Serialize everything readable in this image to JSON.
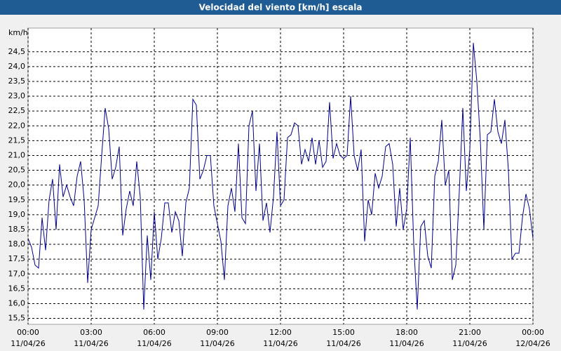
{
  "chart_data": {
    "type": "line",
    "title": "Velocidad del viento [km/h] escala",
    "y_unit": "km/h",
    "x": [
      0,
      10,
      20,
      30,
      40,
      50,
      60,
      70,
      80,
      90,
      100,
      110,
      120,
      130,
      140,
      150,
      160,
      170,
      180,
      190,
      200,
      210,
      220,
      230,
      240,
      250,
      260,
      270,
      280,
      290,
      300,
      310,
      320,
      330,
      340,
      350,
      360,
      370,
      380,
      390,
      400,
      410,
      420,
      430,
      440,
      450,
      460,
      470,
      480,
      490,
      500,
      510,
      520,
      530,
      540,
      550,
      560,
      570,
      580,
      590,
      600,
      610,
      620,
      630,
      640,
      650,
      660,
      670,
      680,
      690,
      700,
      710,
      720,
      730,
      740,
      750,
      760,
      770,
      780,
      790,
      800,
      810,
      820,
      830,
      840,
      850,
      860,
      870,
      880,
      890,
      900,
      910,
      920,
      930,
      940,
      950,
      960,
      970,
      980,
      990,
      1000,
      1010,
      1020,
      1030,
      1040,
      1050,
      1060,
      1070,
      1080,
      1090,
      1100,
      1110,
      1120,
      1130,
      1140,
      1150,
      1160,
      1170,
      1180,
      1190,
      1200,
      1210,
      1220,
      1230,
      1240,
      1250,
      1260,
      1270,
      1280,
      1290,
      1300,
      1310,
      1320,
      1330,
      1340,
      1350,
      1360,
      1370,
      1380,
      1390,
      1400,
      1410,
      1420,
      1430,
      1440
    ],
    "series": [
      {
        "color": "#00008b",
        "values": [
          18.2,
          17.9,
          17.3,
          17.2,
          18.9,
          17.8,
          19.5,
          20.2,
          18.5,
          20.7,
          19.6,
          20.0,
          19.6,
          19.3,
          20.3,
          20.8,
          19.5,
          16.7,
          18.5,
          18.9,
          19.3,
          21.0,
          22.6,
          21.9,
          20.2,
          20.6,
          21.3,
          18.3,
          19.2,
          19.8,
          19.3,
          20.8,
          19.6,
          15.8,
          18.3,
          16.8,
          19.1,
          17.5,
          18.2,
          19.4,
          19.4,
          18.4,
          19.1,
          18.8,
          17.6,
          19.4,
          19.9,
          22.9,
          22.7,
          20.2,
          20.5,
          21.0,
          21.0,
          19.3,
          18.7,
          18.1,
          16.8,
          19.3,
          19.9,
          19.1,
          21.4,
          18.9,
          18.7,
          22.0,
          22.5,
          19.8,
          21.4,
          18.8,
          19.4,
          18.4,
          19.6,
          21.8,
          19.3,
          19.5,
          21.6,
          21.7,
          22.1,
          22.0,
          20.7,
          21.2,
          20.8,
          21.6,
          20.7,
          21.5,
          20.6,
          20.8,
          22.8,
          20.9,
          21.4,
          21.0,
          20.9,
          21.0,
          23.0,
          21.0,
          20.5,
          21.2,
          18.1,
          19.5,
          19.0,
          20.4,
          19.9,
          20.3,
          21.3,
          21.4,
          20.7,
          18.6,
          19.9,
          18.5,
          19.2,
          21.6,
          18.0,
          15.8,
          18.6,
          18.8,
          17.6,
          17.2,
          20.3,
          20.8,
          22.2,
          20.0,
          20.5,
          16.8,
          17.3,
          19.8,
          22.6,
          19.8,
          21.2,
          24.8,
          23.5,
          21.5,
          18.5,
          21.7,
          21.8,
          22.9,
          21.8,
          21.4,
          22.2,
          20.5,
          17.5,
          17.7,
          17.7,
          18.9,
          19.7,
          19.2,
          18.2
        ]
      }
    ],
    "xlim": [
      0,
      1440
    ],
    "xticks": [
      {
        "value": 0,
        "label": "00:00"
      },
      {
        "value": 180,
        "label": "03:00"
      },
      {
        "value": 360,
        "label": "06:00"
      },
      {
        "value": 540,
        "label": "09:00"
      },
      {
        "value": 720,
        "label": "12:00"
      },
      {
        "value": 900,
        "label": "15:00"
      },
      {
        "value": 1080,
        "label": "18:00"
      },
      {
        "value": 1260,
        "label": "21:00"
      },
      {
        "value": 1440,
        "label": "00:00"
      }
    ],
    "xtick_dates": [
      "11/04/26",
      "11/04/26",
      "11/04/26",
      "11/04/26",
      "11/04/26",
      "11/04/26",
      "11/04/26",
      "11/04/26",
      "12/04/26"
    ],
    "ylim": [
      15.3,
      25.3
    ],
    "yticks": [
      {
        "value": 15.5,
        "label": "15,5"
      },
      {
        "value": 16,
        "label": "16,0"
      },
      {
        "value": 16.5,
        "label": "16,5"
      },
      {
        "value": 17,
        "label": "17,0"
      },
      {
        "value": 17.5,
        "label": "17,5"
      },
      {
        "value": 18,
        "label": "18,0"
      },
      {
        "value": 18.5,
        "label": "18,5"
      },
      {
        "value": 19,
        "label": "19,0"
      },
      {
        "value": 19.5,
        "label": "19,5"
      },
      {
        "value": 20,
        "label": "20,0"
      },
      {
        "value": 20.5,
        "label": "20,5"
      },
      {
        "value": 21,
        "label": "21,0"
      },
      {
        "value": 21.5,
        "label": "21,5"
      },
      {
        "value": 22,
        "label": "22,0"
      },
      {
        "value": 22.5,
        "label": "22,5"
      },
      {
        "value": 23,
        "label": "23,0"
      },
      {
        "value": 23.5,
        "label": "23,5"
      },
      {
        "value": 24,
        "label": "24,0"
      },
      {
        "value": 24.5,
        "label": "24,5"
      }
    ],
    "grid": true
  }
}
